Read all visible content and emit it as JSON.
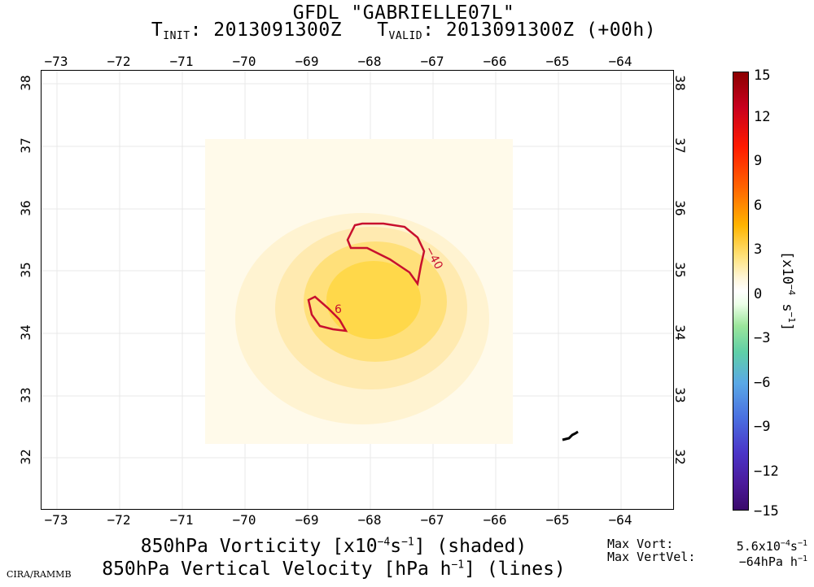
{
  "title_line1": "GFDL \"GABRIELLE07L\"",
  "init_label": "T",
  "init_sub": "INIT",
  "init_value": ": 2013091300Z",
  "valid_label": "T",
  "valid_sub": "VALID",
  "valid_value": ": 2013091300Z (+00h)",
  "lon_ticks": [
    "−73",
    "−72",
    "−71",
    "−70",
    "−69",
    "−68",
    "−67",
    "−66",
    "−65",
    "−64"
  ],
  "lat_ticks": [
    "38",
    "37",
    "36",
    "35",
    "34",
    "33",
    "32"
  ],
  "contours": {
    "label_a": "−40",
    "label_b": "6"
  },
  "colorbar": {
    "labels": [
      "15",
      "12",
      "9",
      "6",
      "3",
      "0",
      "−3",
      "−6",
      "−9",
      "−12",
      "−15"
    ],
    "unit_prefix": "[x10",
    "unit_exp1": "−4",
    "unit_mid": " s",
    "unit_exp2": "−1",
    "unit_suffix": "]"
  },
  "bottom": {
    "line1_a": "850hPa Vorticity [x10",
    "line1_exp1": "−4",
    "line1_b": "s",
    "line1_exp2": "−1",
    "line1_c": "] (shaded)",
    "line2_a": "850hPa Vertical Velocity [hPa h",
    "line2_exp": "−1",
    "line2_b": "] (lines)"
  },
  "credit": "CIRA/RAMMB",
  "stats": {
    "vort_label": "Max Vort:",
    "vort_value_a": "5.6x10",
    "vort_exp1": "−4",
    "vort_value_b": "s",
    "vort_exp2": "−1",
    "vv_label": "Max VertVel:",
    "vv_value_a": "−64hPa h",
    "vv_exp": "−1"
  },
  "colors": {
    "contour": "#c8102e",
    "gridline": "#e6e6e6",
    "shade_core": "#ffd633"
  }
}
